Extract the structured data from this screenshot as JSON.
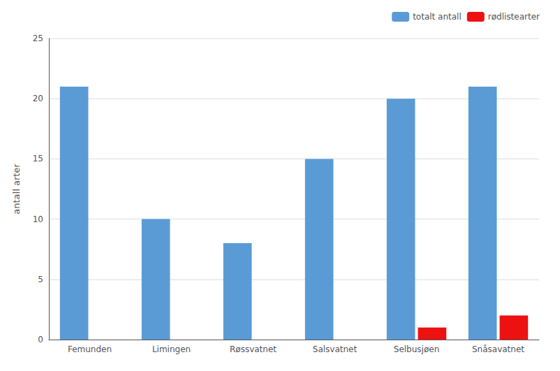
{
  "chart_data": {
    "type": "bar",
    "categories": [
      "Femunden",
      "Limingen",
      "Røssvatnet",
      "Salsvatnet",
      "Selbusjøen",
      "Snåsavatnet"
    ],
    "series": [
      {
        "name": "totalt antall",
        "color": "#5B9BD5",
        "values": [
          21,
          10,
          8,
          15,
          20,
          21
        ]
      },
      {
        "name": "rødlistearter",
        "color": "#EE1111",
        "values": [
          0,
          0,
          0,
          0,
          1,
          2
        ]
      }
    ],
    "ylabel": "antall arter",
    "ylim": [
      0,
      25
    ],
    "yticks": [
      0,
      5,
      10,
      15,
      20,
      25
    ],
    "grid": true,
    "legend": "upper right"
  }
}
